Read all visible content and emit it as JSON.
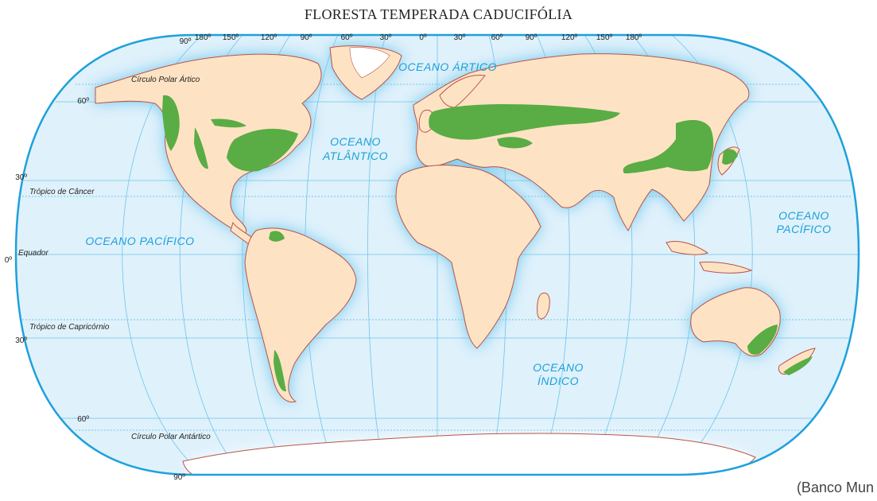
{
  "title": "FLORESTA TEMPERADA CADUCIFÓLIA",
  "source": "(Banco Mun",
  "colors": {
    "ocean": "#dff1fb",
    "ocean_glow": "#49b8e8",
    "land": "#fde3c4",
    "coast": "#b9534a",
    "forest": "#5aac44",
    "grid": "#6cc6ec",
    "frame": "#1ea0dc",
    "ocean_text": "#1aa0dc",
    "ice": "#ffffff"
  },
  "lon_labels": [
    "90º",
    "180º",
    "150º",
    "120º",
    "90º",
    "60º",
    "30º",
    "0º",
    "30º",
    "60º",
    "90º",
    "120º",
    "150º",
    "180º"
  ],
  "lat_labels": {
    "n60": "60º",
    "n30": "30º",
    "eq": "0º",
    "s30": "30º",
    "s60": "60º",
    "s90": "90º"
  },
  "line_labels": {
    "arctic_circle": "Círculo Polar Ártico",
    "tropic_cancer": "Trópico de Câncer",
    "equator": "Equador",
    "tropic_capricorn": "Trópico de Capricórnio",
    "antarctic_circle": "Círculo Polar Antártico"
  },
  "oceans": {
    "arctic": "OCEANO ÁRTICO",
    "atlantic_1": "OCEANO",
    "atlantic_2": "ATLÂNTICO",
    "pacific_west": "OCEANO PACÍFICO",
    "pacific_east_1": "OCEANO",
    "pacific_east_2": "PACÍFICO",
    "indian_1": "OCEANO",
    "indian_2": "ÍNDICO"
  }
}
